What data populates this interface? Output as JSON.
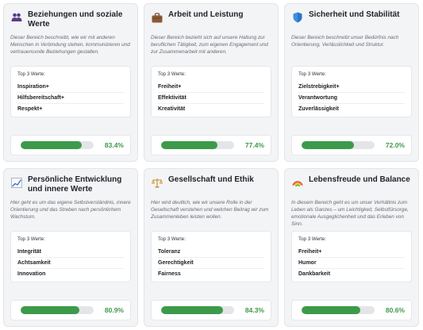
{
  "values_label": "Top 3 Werte:",
  "colors": {
    "accent": "#3d9a4a",
    "card_bg": "#f3f4f6",
    "track": "#e3e5e8"
  },
  "cards": [
    {
      "icon": "people-icon",
      "title": "Beziehungen und soziale Werte",
      "description": "Dieser Bereich beschreibt, wie wir mit anderen Menschen in Verbindung stehen, kommunizieren und vertrauensvolle Beziehungen gestalten.",
      "values": [
        "Inspiration+",
        "Hilfsbereitschaft+",
        "Respekt+"
      ],
      "percent": 83.4,
      "percent_label": "83.4%"
    },
    {
      "icon": "briefcase-icon",
      "title": "Arbeit und Leistung",
      "description": "Dieser Bereich bezieht sich auf unsere Haltung zur beruflichen Tätigkeit, zum eigenen Engagement und zur Zusammenarbeit mit anderen.",
      "values": [
        "Freiheit+",
        "Effektivität",
        "Kreativität"
      ],
      "percent": 77.4,
      "percent_label": "77.4%"
    },
    {
      "icon": "shield-icon",
      "title": "Sicherheit und Stabilität",
      "description": "Dieser Bereich beschreibt unser Bedürfnis nach Orientierung, Verlässlichkeit und Struktur.",
      "values": [
        "Zielstrebigkeit+",
        "Verantwortung",
        "Zuverlässigkeit"
      ],
      "percent": 72.0,
      "percent_label": "72.0%"
    },
    {
      "icon": "chart-trend-icon",
      "title": "Persönliche Entwicklung und innere Werte",
      "description": "Hier geht es um das eigene Selbstverständnis, innere Orientierung und das Streben nach persönlichem Wachstum.",
      "values": [
        "Integrität",
        "Achtsamkeit",
        "Innovation"
      ],
      "percent": 80.9,
      "percent_label": "80.9%"
    },
    {
      "icon": "scales-icon",
      "title": "Gesellschaft und Ethik",
      "description": "Hier wird deutlich, wie wir unsere Rolle in der Gesellschaft verstehen und welchen Beitrag wir zum Zusammenleben leisten wollen.",
      "values": [
        "Toleranz",
        "Gerechtigkeit",
        "Fairness"
      ],
      "percent": 84.3,
      "percent_label": "84.3%"
    },
    {
      "icon": "rainbow-icon",
      "title": "Lebensfreude und Balance",
      "description": "In diesem Bereich geht es um unser Verhältnis zum Leben als Ganzes – um Leichtigkeit, Selbstfürsorge, emotionale Ausgeglichenheit und das Erleben von Sinn.",
      "values": [
        "Freiheit+",
        "Humor",
        "Dankbarkeit"
      ],
      "percent": 80.6,
      "percent_label": "80.6%"
    }
  ]
}
